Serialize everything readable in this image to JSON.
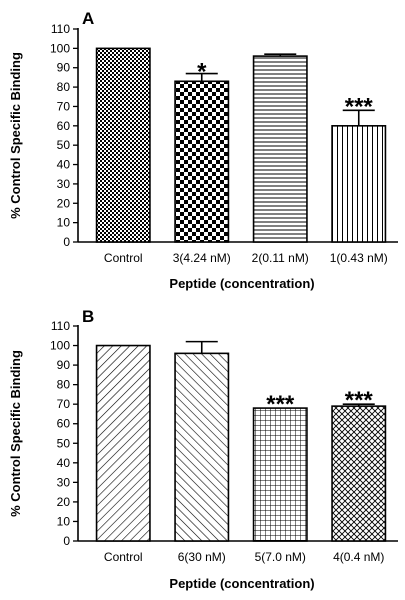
{
  "chart_data": [
    {
      "type": "bar",
      "panel": "A",
      "ylabel": "% Control Specific Binding",
      "xlabel": "Peptide (concentration)",
      "ylim": [
        0,
        110
      ],
      "yticks": [
        0,
        10,
        20,
        30,
        40,
        50,
        60,
        70,
        80,
        90,
        100,
        110
      ],
      "categories": [
        "Control",
        "3(4.24 nM)",
        "2(0.11 nM)",
        "1(0.43 nM)"
      ],
      "values": [
        100,
        83,
        96,
        60
      ],
      "errors": [
        0,
        4,
        1,
        8
      ],
      "significance": [
        "",
        "*",
        "",
        "***"
      ],
      "patterns": [
        "fine-checker",
        "checker",
        "horizontal",
        "vertical"
      ]
    },
    {
      "type": "bar",
      "panel": "B",
      "ylabel": "% Control Specific Binding",
      "xlabel": "Peptide (concentration)",
      "ylim": [
        0,
        110
      ],
      "yticks": [
        0,
        10,
        20,
        30,
        40,
        50,
        60,
        70,
        80,
        90,
        100,
        110
      ],
      "categories": [
        "Control",
        "6(30 nM)",
        "5(7.0 nM)",
        "4(0.4 nM)"
      ],
      "values": [
        100,
        96,
        68,
        69
      ],
      "errors": [
        0,
        6,
        0,
        1
      ],
      "significance": [
        "",
        "",
        "***",
        "***"
      ],
      "patterns": [
        "diag-up",
        "diag-down",
        "grid",
        "crosshatch"
      ]
    }
  ]
}
